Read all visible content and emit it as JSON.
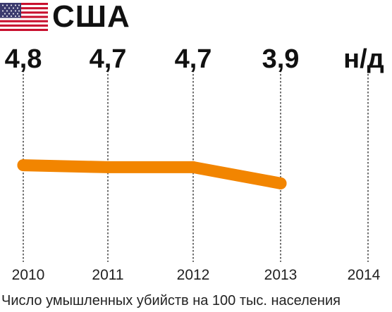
{
  "header": {
    "country": "США",
    "flag": "us-flag"
  },
  "caption": "Число умышленных убийств на 100 тыс. населения",
  "colors": {
    "line": "#f28500",
    "guide": "#333333",
    "text": "#111111"
  },
  "chart_data": {
    "type": "line",
    "title": "США",
    "xlabel": "Число умышленных убийств на 100 тыс. населения",
    "ylabel": "",
    "categories": [
      "2010",
      "2011",
      "2012",
      "2013",
      "2014"
    ],
    "value_labels": [
      "4,8",
      "4,7",
      "4,7",
      "3,9",
      "н/д"
    ],
    "values": [
      4.8,
      4.7,
      4.7,
      3.9,
      null
    ],
    "ylim": [
      0,
      9.5
    ],
    "grid": false,
    "legend": "none"
  }
}
